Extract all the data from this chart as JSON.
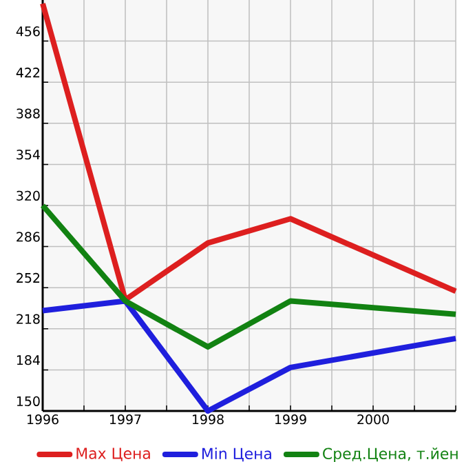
{
  "chart_data": {
    "type": "line",
    "xlim": [
      1996,
      2001
    ],
    "xticks": [
      1996,
      {
        "value": 1996.5,
        "label": null
      },
      1997,
      {
        "value": 1997.5,
        "label": null
      },
      1998,
      {
        "value": 1998.5,
        "label": null
      },
      1999,
      {
        "value": 1999.5,
        "label": null
      },
      2000,
      {
        "value": 2000.5,
        "label": null
      },
      {
        "value": 2001,
        "label": null
      }
    ],
    "ylim": [
      150,
      490
    ],
    "yticks": [
      150,
      184,
      218,
      252,
      286,
      320,
      354,
      388,
      422,
      456
    ],
    "grid": true,
    "legend": "bottom",
    "series": [
      {
        "name": "Max Цена",
        "color": "#dd1f1f",
        "x": [
          1996,
          1997,
          1998,
          1999,
          2001
        ],
        "values": [
          487,
          242,
          289,
          309,
          249
        ]
      },
      {
        "name": "Min Цена",
        "color": "#1f1fdd",
        "x": [
          1996,
          1997,
          1998,
          1999,
          2001
        ],
        "values": [
          233,
          241,
          150,
          186,
          210
        ]
      },
      {
        "name": "Сред.Цена, т.йен",
        "color": "#128212",
        "x": [
          1996,
          1997,
          1998,
          1999,
          2001
        ],
        "values": [
          320,
          241,
          203,
          241,
          230
        ]
      }
    ]
  }
}
